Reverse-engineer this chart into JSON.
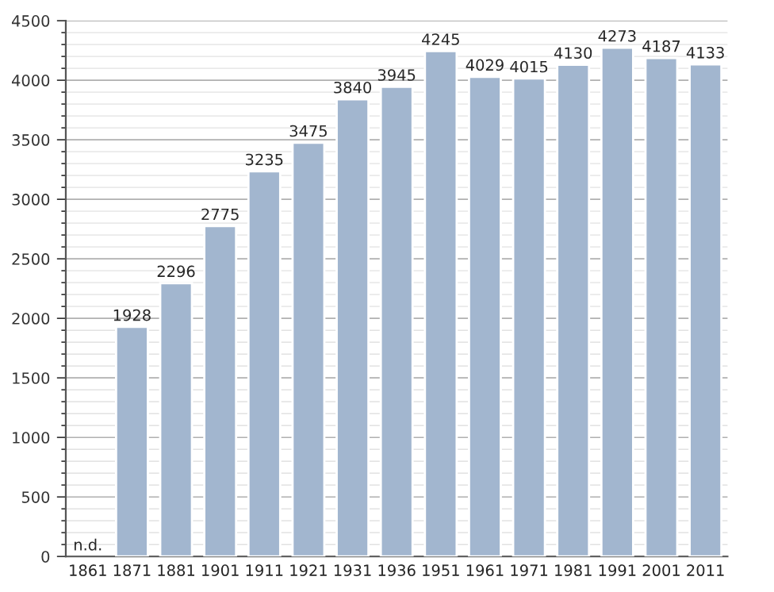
{
  "chart_data": {
    "type": "bar",
    "categories": [
      "1861",
      "1871",
      "1881",
      "1901",
      "1911",
      "1921",
      "1931",
      "1936",
      "1951",
      "1961",
      "1971",
      "1981",
      "1991",
      "2001",
      "2011"
    ],
    "values": [
      null,
      1928,
      2296,
      2775,
      3235,
      3475,
      3840,
      3945,
      4245,
      4029,
      4015,
      4130,
      4273,
      4187,
      4133
    ],
    "value_labels": [
      "n.d.",
      "1928",
      "2296",
      "2775",
      "3235",
      "3475",
      "3840",
      "3945",
      "4245",
      "4029",
      "4015",
      "4130",
      "4273",
      "4187",
      "4133"
    ],
    "color": "#a2b6cf",
    "ylim": [
      0,
      4500
    ],
    "yticks": [
      0,
      {
        "value": 100,
        "label": null
      },
      {
        "value": 200,
        "label": null
      },
      {
        "value": 300,
        "label": null
      },
      {
        "value": 400,
        "label": null
      },
      500,
      {
        "value": 600,
        "label": null
      },
      {
        "value": 700,
        "label": null
      },
      {
        "value": 800,
        "label": null
      },
      {
        "value": 900,
        "label": null
      },
      1000,
      {
        "value": 1100,
        "label": null
      },
      {
        "value": 1200,
        "label": null
      },
      {
        "value": 1300,
        "label": null
      },
      {
        "value": 1400,
        "label": null
      },
      1500,
      {
        "value": 1600,
        "label": null
      },
      {
        "value": 1700,
        "label": null
      },
      {
        "value": 1800,
        "label": null
      },
      {
        "value": 1900,
        "label": null
      },
      2000,
      {
        "value": 2100,
        "label": null
      },
      {
        "value": 2200,
        "label": null
      },
      {
        "value": 2300,
        "label": null
      },
      {
        "value": 2400,
        "label": null
      },
      2500,
      {
        "value": 2600,
        "label": null
      },
      {
        "value": 2700,
        "label": null
      },
      {
        "value": 2800,
        "label": null
      },
      {
        "value": 2900,
        "label": null
      },
      3000,
      {
        "value": 3100,
        "label": null
      },
      {
        "value": 3200,
        "label": null
      },
      {
        "value": 3300,
        "label": null
      },
      {
        "value": 3400,
        "label": null
      },
      3500,
      {
        "value": 3600,
        "label": null
      },
      {
        "value": 3700,
        "label": null
      },
      {
        "value": 3800,
        "label": null
      },
      {
        "value": 3900,
        "label": null
      },
      4000,
      {
        "value": 4100,
        "label": null
      },
      {
        "value": 4200,
        "label": null
      },
      {
        "value": 4300,
        "label": null
      },
      {
        "value": 4400,
        "label": null
      },
      4500
    ],
    "grid": "y"
  }
}
